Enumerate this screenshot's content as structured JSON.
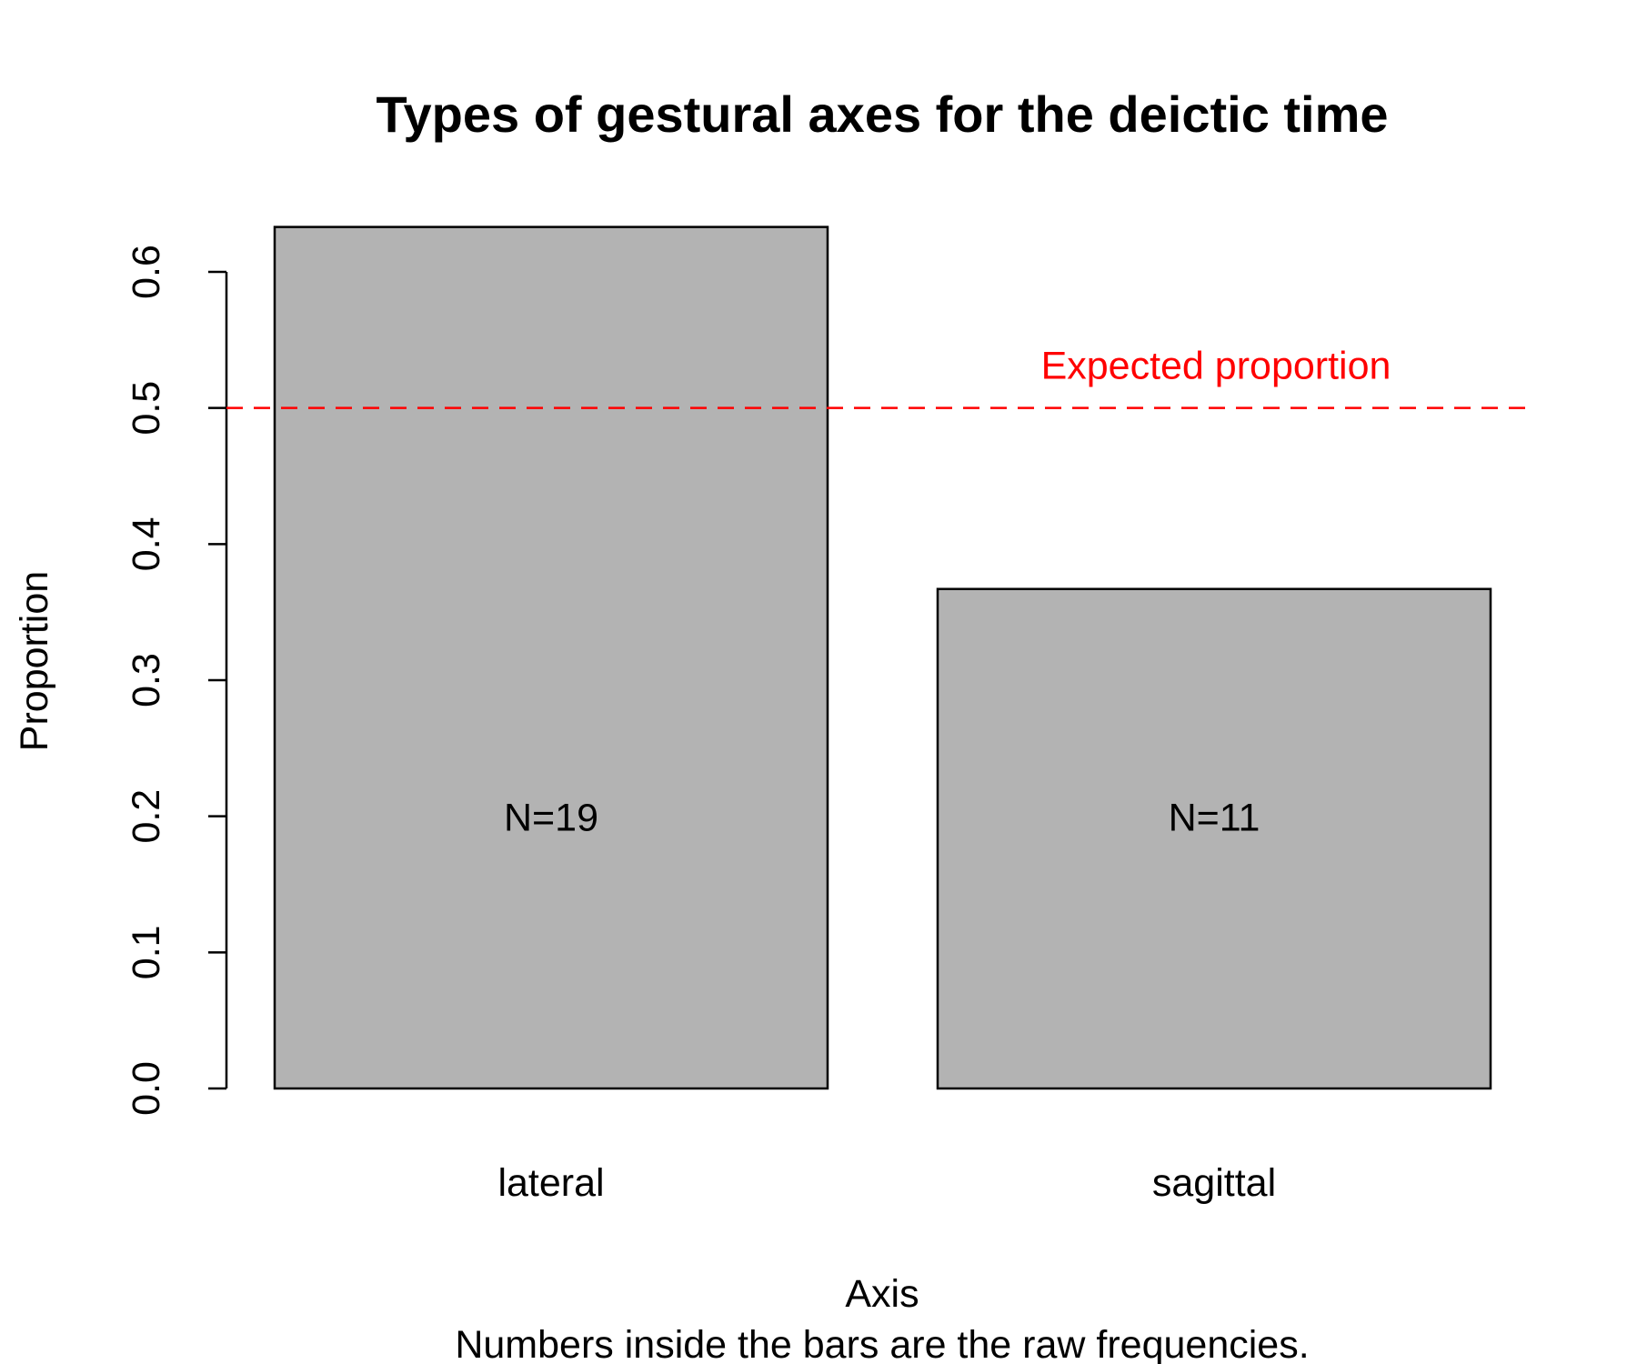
{
  "chart_data": {
    "type": "bar",
    "title": "Types of gestural axes for the deictic time",
    "xlabel": "Axis",
    "caption": "Numbers inside the bars are the raw frequencies.",
    "ylabel": "Proportion",
    "categories": [
      "lateral",
      "sagittal"
    ],
    "values": [
      0.633,
      0.367
    ],
    "bar_labels": [
      "N=19",
      "N=11"
    ],
    "ylim": [
      0,
      0.6
    ],
    "yticks": [
      0.0,
      0.1,
      0.2,
      0.3,
      0.4,
      0.5,
      0.6
    ],
    "ytick_labels": [
      "0.0",
      "0.1",
      "0.2",
      "0.3",
      "0.4",
      "0.5",
      "0.6"
    ],
    "reference_line": {
      "value": 0.5,
      "label": "Expected proportion",
      "style": "dashed",
      "color": "#ff0000"
    },
    "bar_color": "#b3b3b3",
    "grid": false
  }
}
